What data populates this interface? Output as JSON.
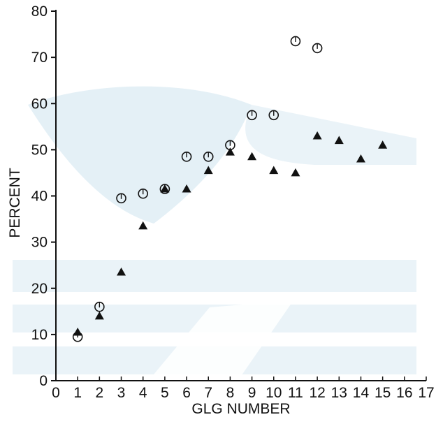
{
  "chart_data": {
    "type": "scatter",
    "xlabel": "GLG NUMBER",
    "ylabel": "PERCENT",
    "xlim": [
      0,
      17
    ],
    "ylim": [
      0,
      80
    ],
    "x_ticks": [
      "0",
      "1",
      "2",
      "3",
      "4",
      "5",
      "6",
      "7",
      "8",
      "9",
      "10",
      "11",
      "12",
      "13",
      "14",
      "15",
      "16",
      "17"
    ],
    "y_ticks": [
      "0",
      "10",
      "20",
      "30",
      "40",
      "50",
      "60",
      "70",
      "80"
    ],
    "grid": false,
    "legend": "none",
    "series": [
      {
        "marker": "open-circle",
        "color": "#111111",
        "points": [
          {
            "x": 1,
            "y": 9.5
          },
          {
            "x": 2,
            "y": 16
          },
          {
            "x": 3,
            "y": 39.5
          },
          {
            "x": 4,
            "y": 40.5
          },
          {
            "x": 5,
            "y": 41.5
          },
          {
            "x": 6,
            "y": 48.5
          },
          {
            "x": 7,
            "y": 48.5
          },
          {
            "x": 8,
            "y": 51
          },
          {
            "x": 9,
            "y": 57.5
          },
          {
            "x": 10,
            "y": 57.5
          },
          {
            "x": 11,
            "y": 73.5
          },
          {
            "x": 12,
            "y": 72
          }
        ]
      },
      {
        "marker": "filled-triangle",
        "color": "#111111",
        "points": [
          {
            "x": 1,
            "y": 10.5
          },
          {
            "x": 2,
            "y": 14
          },
          {
            "x": 3,
            "y": 23.5
          },
          {
            "x": 4,
            "y": 33.5
          },
          {
            "x": 5,
            "y": 41.5
          },
          {
            "x": 6,
            "y": 41.5
          },
          {
            "x": 7,
            "y": 45.5
          },
          {
            "x": 8,
            "y": 49.5
          },
          {
            "x": 9,
            "y": 48.5
          },
          {
            "x": 10,
            "y": 45.5
          },
          {
            "x": 11,
            "y": 45
          },
          {
            "x": 12,
            "y": 53
          },
          {
            "x": 13,
            "y": 52
          },
          {
            "x": 14,
            "y": 48
          },
          {
            "x": 15,
            "y": 51
          }
        ]
      }
    ]
  }
}
